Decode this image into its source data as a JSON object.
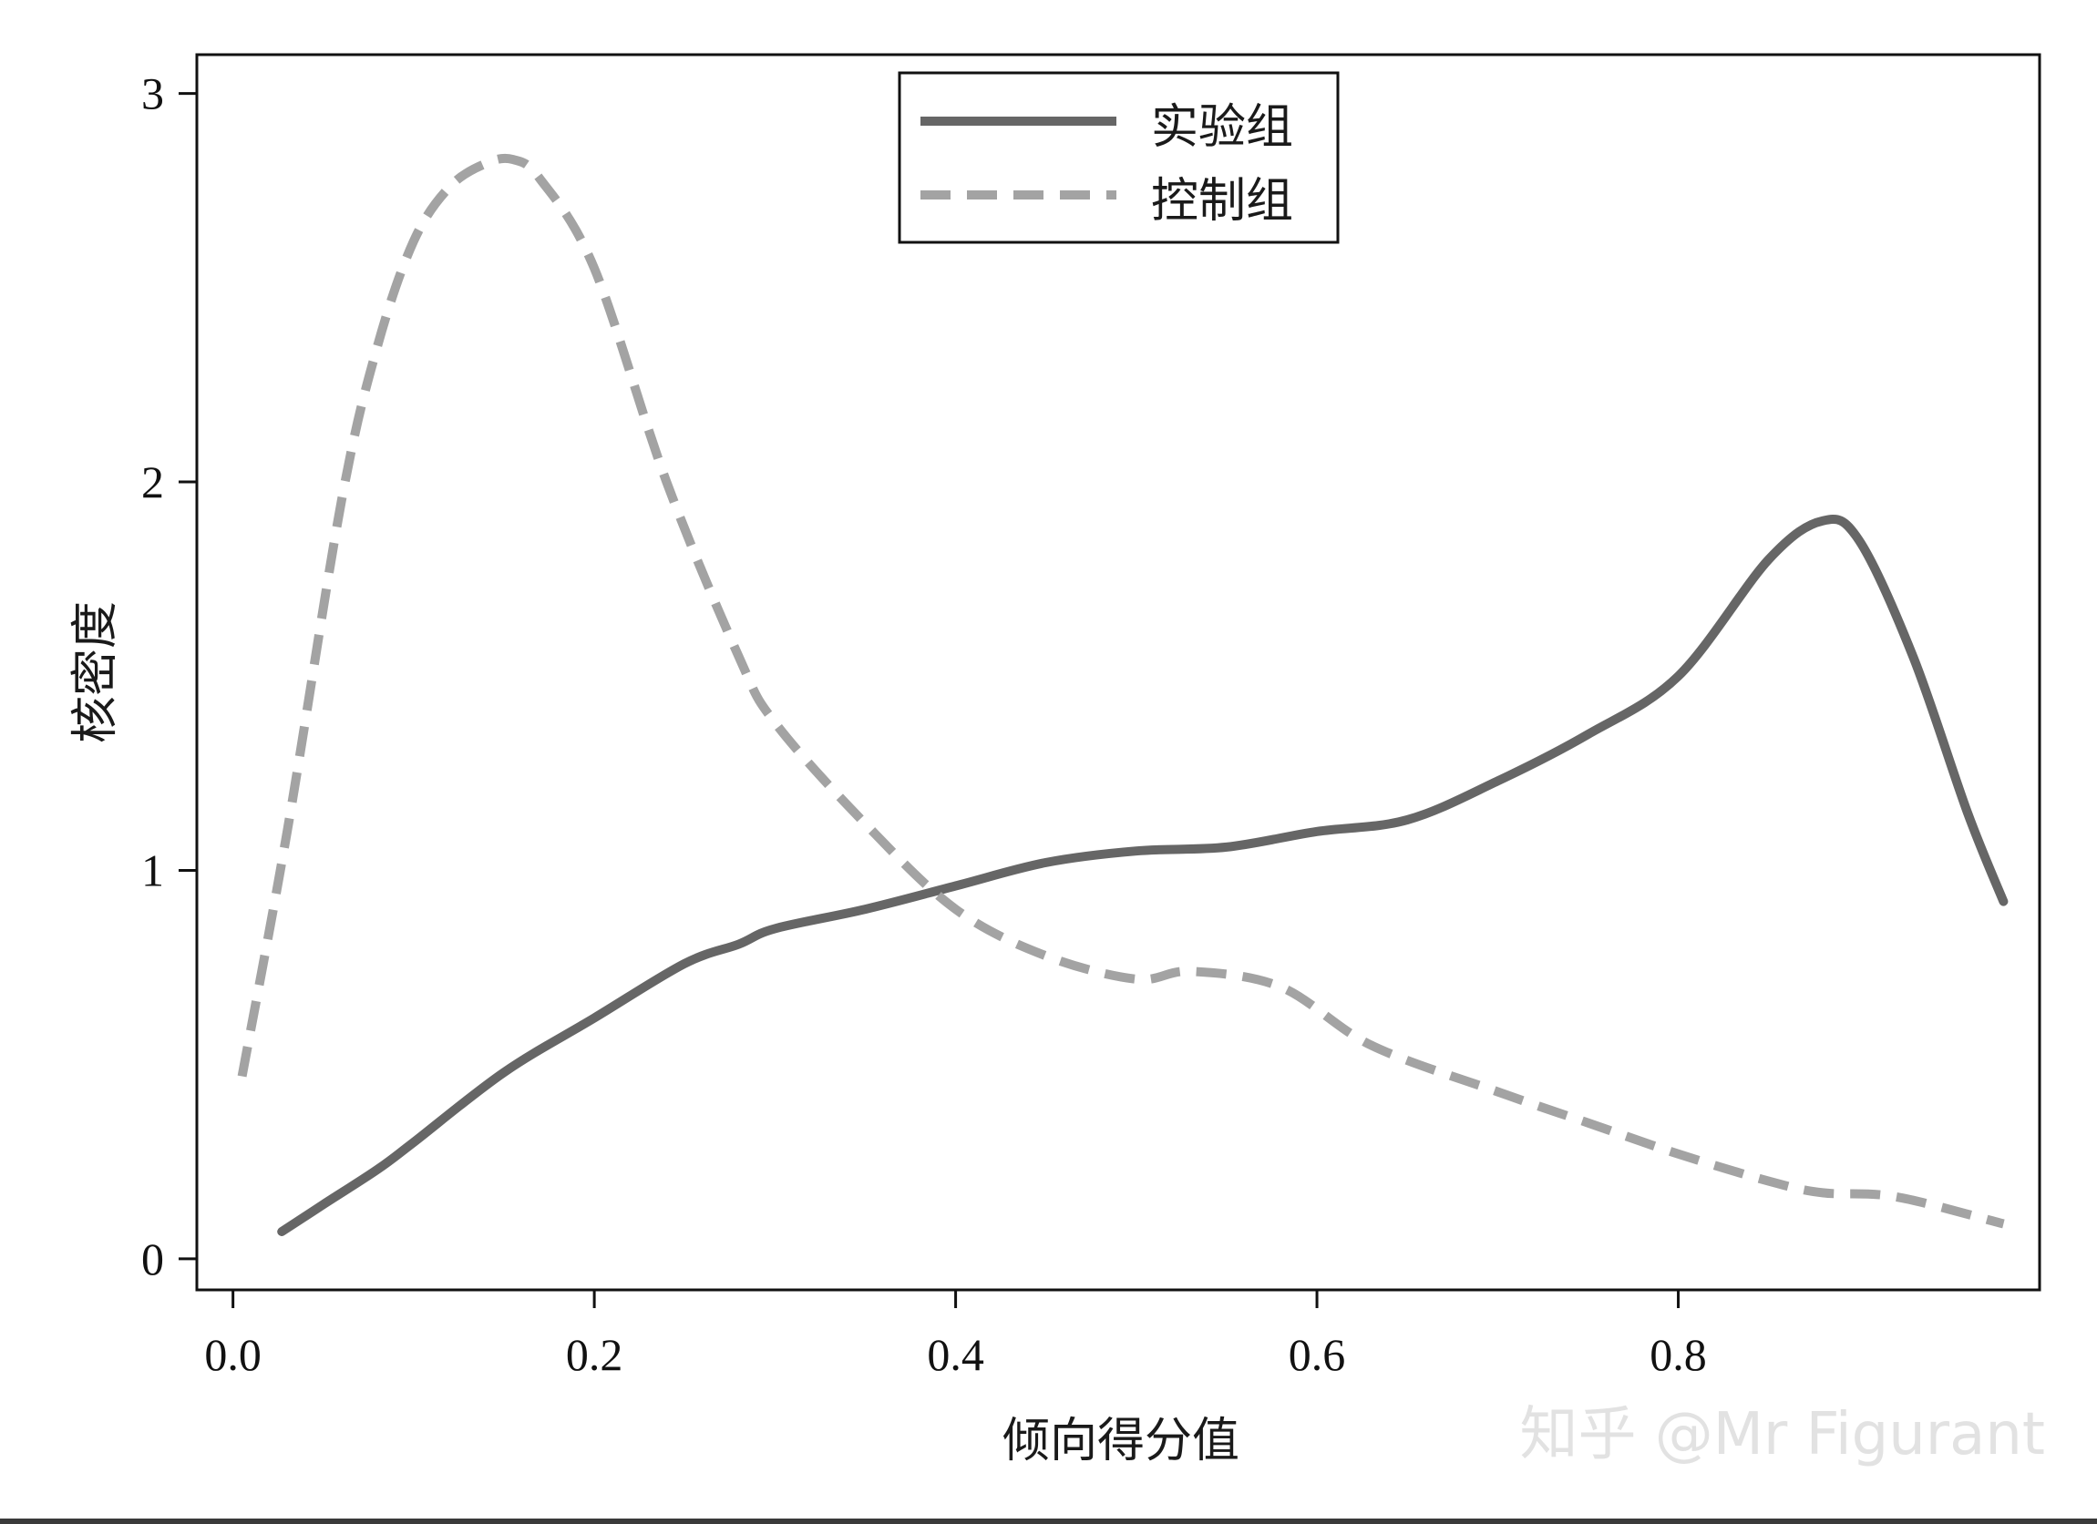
{
  "chart_data": {
    "type": "line",
    "xlabel": "倾向得分值",
    "ylabel": "核密度",
    "xlim": [
      -0.02,
      1.0
    ],
    "ylim": [
      -0.08,
      3.1
    ],
    "x_ticks": [
      0.0,
      0.2,
      0.4,
      0.6,
      0.8
    ],
    "x_tick_labels": [
      "0.0",
      "0.2",
      "0.4",
      "0.6",
      "0.8"
    ],
    "y_ticks": [
      0,
      1,
      2,
      3
    ],
    "y_tick_labels": [
      "0",
      "1",
      "2",
      "3"
    ],
    "grid": false,
    "legend_position": "top-center",
    "series": [
      {
        "name": "实验组",
        "style": "solid",
        "color": "#666666",
        "x": [
          0.027,
          0.05,
          0.08,
          0.1,
          0.15,
          0.2,
          0.25,
          0.28,
          0.3,
          0.35,
          0.4,
          0.45,
          0.5,
          0.55,
          0.6,
          0.65,
          0.7,
          0.75,
          0.8,
          0.85,
          0.88,
          0.9,
          0.93,
          0.96,
          0.98
        ],
        "y": [
          0.07,
          0.14,
          0.23,
          0.3,
          0.48,
          0.62,
          0.76,
          0.81,
          0.85,
          0.9,
          0.96,
          1.02,
          1.05,
          1.06,
          1.1,
          1.13,
          1.23,
          1.35,
          1.5,
          1.8,
          1.9,
          1.85,
          1.55,
          1.15,
          0.92
        ]
      },
      {
        "name": "控制组",
        "style": "dashed",
        "color": "#a3a3a3",
        "x": [
          0.005,
          0.03,
          0.06,
          0.08,
          0.1,
          0.12,
          0.14,
          0.155,
          0.17,
          0.2,
          0.24,
          0.28,
          0.3,
          0.35,
          0.4,
          0.45,
          0.5,
          0.53,
          0.58,
          0.63,
          0.7,
          0.75,
          0.8,
          0.85,
          0.88,
          0.92,
          0.98
        ],
        "y": [
          0.47,
          1.1,
          1.95,
          2.35,
          2.62,
          2.76,
          2.82,
          2.83,
          2.78,
          2.55,
          2.0,
          1.55,
          1.38,
          1.12,
          0.9,
          0.78,
          0.72,
          0.74,
          0.7,
          0.55,
          0.43,
          0.35,
          0.27,
          0.2,
          0.17,
          0.16,
          0.09
        ]
      }
    ],
    "watermark": "知乎 @Mr Figurant"
  }
}
